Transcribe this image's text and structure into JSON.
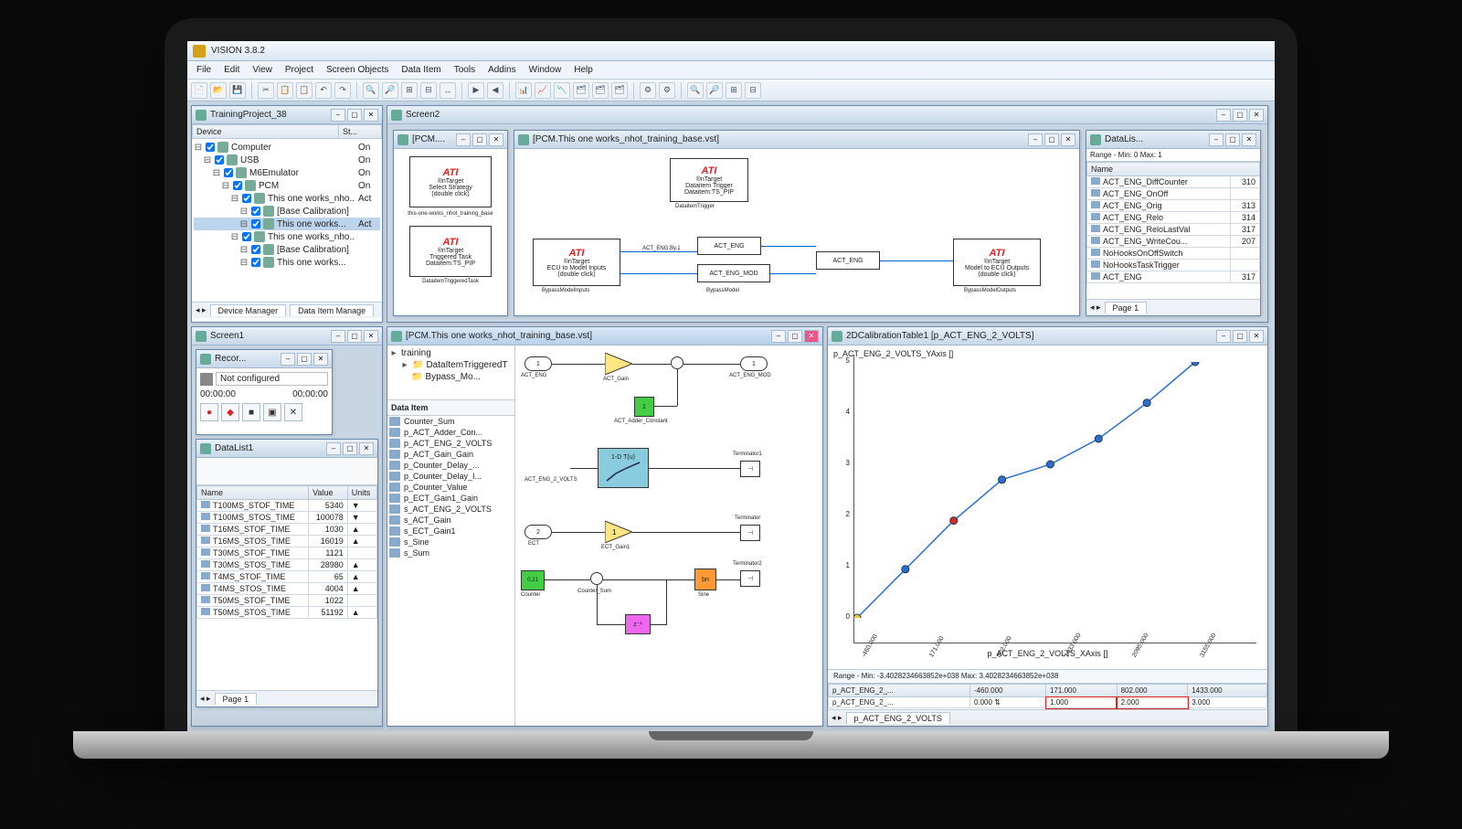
{
  "app": {
    "title": "VISION 3.8.2"
  },
  "menu": [
    "File",
    "Edit",
    "View",
    "Project",
    "Screen Objects",
    "Data Item",
    "Tools",
    "Addins",
    "Window",
    "Help"
  ],
  "projectTree": {
    "title": "TrainingProject_38",
    "cols": [
      "Device",
      "St..."
    ],
    "nodes": [
      {
        "indent": 0,
        "label": "Computer",
        "status": "On"
      },
      {
        "indent": 1,
        "label": "USB",
        "status": "On"
      },
      {
        "indent": 2,
        "label": "M6Emulator",
        "status": "On"
      },
      {
        "indent": 3,
        "label": "PCM",
        "status": "On"
      },
      {
        "indent": 4,
        "label": "This one works_nho...",
        "status": "Act"
      },
      {
        "indent": 5,
        "label": "[Base Calibration]",
        "status": ""
      },
      {
        "indent": 5,
        "label": "This one works...",
        "status": "Act",
        "sel": true
      },
      {
        "indent": 4,
        "label": "This one works_nho...",
        "status": ""
      },
      {
        "indent": 5,
        "label": "[Base Calibration]",
        "status": ""
      },
      {
        "indent": 5,
        "label": "This one works...",
        "status": ""
      }
    ],
    "tabs": [
      "Device Manager",
      "Data Item Manage"
    ]
  },
  "screen1": {
    "title": "Screen1"
  },
  "recorder": {
    "title": "Recor...",
    "status": "Not configured",
    "t1": "00:00:00",
    "t2": "00:00:00",
    "buttons": [
      "●",
      "◆",
      "■",
      "▣",
      "✕"
    ],
    "btn_colors": [
      "#d22",
      "#d22",
      "#333",
      "#333",
      "#333"
    ]
  },
  "dataList1": {
    "title": "DataList1",
    "cols": [
      "Name",
      "Value",
      "Units"
    ],
    "rows": [
      [
        "T100MS_STOF_TIME",
        "5340",
        "▼"
      ],
      [
        "T100MS_STOS_TIME",
        "100078",
        "▼"
      ],
      [
        "T16MS_STOF_TIME",
        "1030",
        "▲"
      ],
      [
        "T16MS_STOS_TIME",
        "16019",
        "▲"
      ],
      [
        "T30MS_STOF_TIME",
        "1121",
        ""
      ],
      [
        "T30MS_STOS_TIME",
        "28980",
        "▲"
      ],
      [
        "T4MS_STOF_TIME",
        "65",
        "▲"
      ],
      [
        "T4MS_STOS_TIME",
        "4004",
        "▲"
      ],
      [
        "T50MS_STOF_TIME",
        "1022",
        ""
      ],
      [
        "T50MS_STOS_TIME",
        "51192",
        "▲"
      ]
    ],
    "tab": "Page 1"
  },
  "screen2": {
    "title": "Screen2"
  },
  "pcmThumb": {
    "title": "[PCM....",
    "card1": {
      "brand": "ATI",
      "sub": "®nTarget",
      "line1": "Select Strategy",
      "line2": "(double click)"
    },
    "caption1": "this-one-works_nhot_training_base",
    "card2": {
      "brand": "ATI",
      "sub": "®nTarget",
      "line1": "Triggered Task",
      "line2": "Dataitem:TS_PIP"
    },
    "caption2": "DataitemTriggeredTask"
  },
  "pcmDiagram": {
    "title": "[PCM.This one works_nhot_training_base.vst]",
    "left": {
      "brand": "ATI",
      "sub": "®nTarget",
      "line1": "Dataitem Trigger",
      "line2": "Dataitem:TS_PIP"
    },
    "leftCap": "DataitemTrigger",
    "mid": {
      "brand": "ATI",
      "sub": "®nTarget",
      "line1": "ECU to Model Inputs",
      "line2": "(double click)"
    },
    "midCap": "BypassModelInputs",
    "n1": "ACT_ENG.By.1",
    "n2": "ACT_ENG",
    "n3": "ACT_ENG_MOD",
    "n4": "ACT_ENG",
    "bypass": "BypassModel",
    "right": {
      "brand": "ATI",
      "sub": "®nTarget",
      "line1": "Model to ECU Outputs",
      "line2": "(double click)"
    },
    "rightCap": "BypassModelOutputs"
  },
  "dataList2": {
    "title": "DataLis...",
    "range": "Range -  Min: 0   Max: 1",
    "col": "Name",
    "rows": [
      [
        "ACT_ENG_DiffCounter",
        "310"
      ],
      [
        "ACT_ENG_OnOff",
        ""
      ],
      [
        "ACT_ENG_Orig",
        "313"
      ],
      [
        "ACT_ENG_Relo",
        "314"
      ],
      [
        "ACT_ENG_ReloLastVal",
        "317"
      ],
      [
        "ACT_ENG_WriteCou...",
        "207"
      ],
      [
        "NoHooksOnOffSwitch",
        ""
      ],
      [
        "NoHooksTaskTrigger",
        ""
      ],
      [
        "ACT_ENG",
        "317"
      ]
    ],
    "tab": "Page 1"
  },
  "simulink": {
    "title": "[PCM.This one works_nhot_training_base.vst]",
    "tree": [
      "training",
      "DataItemTriggeredT",
      "Bypass_Mo..."
    ],
    "dataItemHdr": "Data Item",
    "items": [
      "Counter_Sum",
      "p_ACT_Adder_Con...",
      "p_ACT_ENG_2_VOLTS",
      "p_ACT_Gain_Gain",
      "p_Counter_Delay_...",
      "p_Counter_Delay_I...",
      "p_Counter_Value",
      "p_ECT_Gain1_Gain",
      "s_ACT_ENG_2_VOLTS",
      "s_ACT_Gain",
      "s_ECT_Gain1",
      "s_Sine",
      "s_Sum"
    ],
    "blocks": {
      "in1": "ACT_ENG",
      "gain1": "ACT_Gain",
      "out1": "ACT_ENG_MOD",
      "const": "ACT_Adder_Constant",
      "const_val": "1",
      "lut": "1-D T(u)",
      "lut_in": "ACT_ENG_2_VOLTS",
      "term1": "Terminator1",
      "in2": "ECT",
      "gain2": "ECT_Gain1",
      "gain2_val": "1",
      "term2": "Terminator",
      "counter": "Counter",
      "counter_val": "0.21",
      "sum": "Counter_Sum",
      "sine": "Sine",
      "sine_box": "bn",
      "term3": "Terminator2",
      "delay": "z",
      "delay_val": "-1"
    }
  },
  "calib": {
    "title": "2DCalibrationTable1 [p_ACT_ENG_2_VOLTS]",
    "ylabel": "p_ACT_ENG_2_VOLTS_YAxis []",
    "xlabel": "p_ACT_ENG_2_VOLTS_XAxis []",
    "yticks": [
      0,
      1,
      2,
      3,
      4,
      5
    ],
    "xticks": [
      "-460.000",
      "171.000",
      "802.000",
      "1433.000",
      "2095.000",
      "3155.000"
    ],
    "points": [
      [
        0,
        0
      ],
      [
        1,
        0.95
      ],
      [
        2,
        1.9
      ],
      [
        3,
        2.7
      ],
      [
        4,
        3.0
      ],
      [
        5,
        3.5
      ],
      [
        6,
        4.2
      ],
      [
        7,
        5.0
      ]
    ],
    "point_color": "#2b6fd6",
    "highlight_idx": 2,
    "highlight_color": "#d62b2b",
    "origin_color": "#e6c84a",
    "range": "Range -  Min: -3.4028234663852e+038   Max: 3.4028234663852e+038",
    "tbl_hdr": [
      "p_ACT_ENG_2_...",
      "-460.000",
      "171.000",
      "802.000",
      "1433.000"
    ],
    "tbl_row": [
      "p_ACT_ENG_2_...",
      "0.000",
      "1.000",
      "2.000",
      "3.000"
    ],
    "tab": "p_ACT_ENG_2_VOLTS"
  }
}
